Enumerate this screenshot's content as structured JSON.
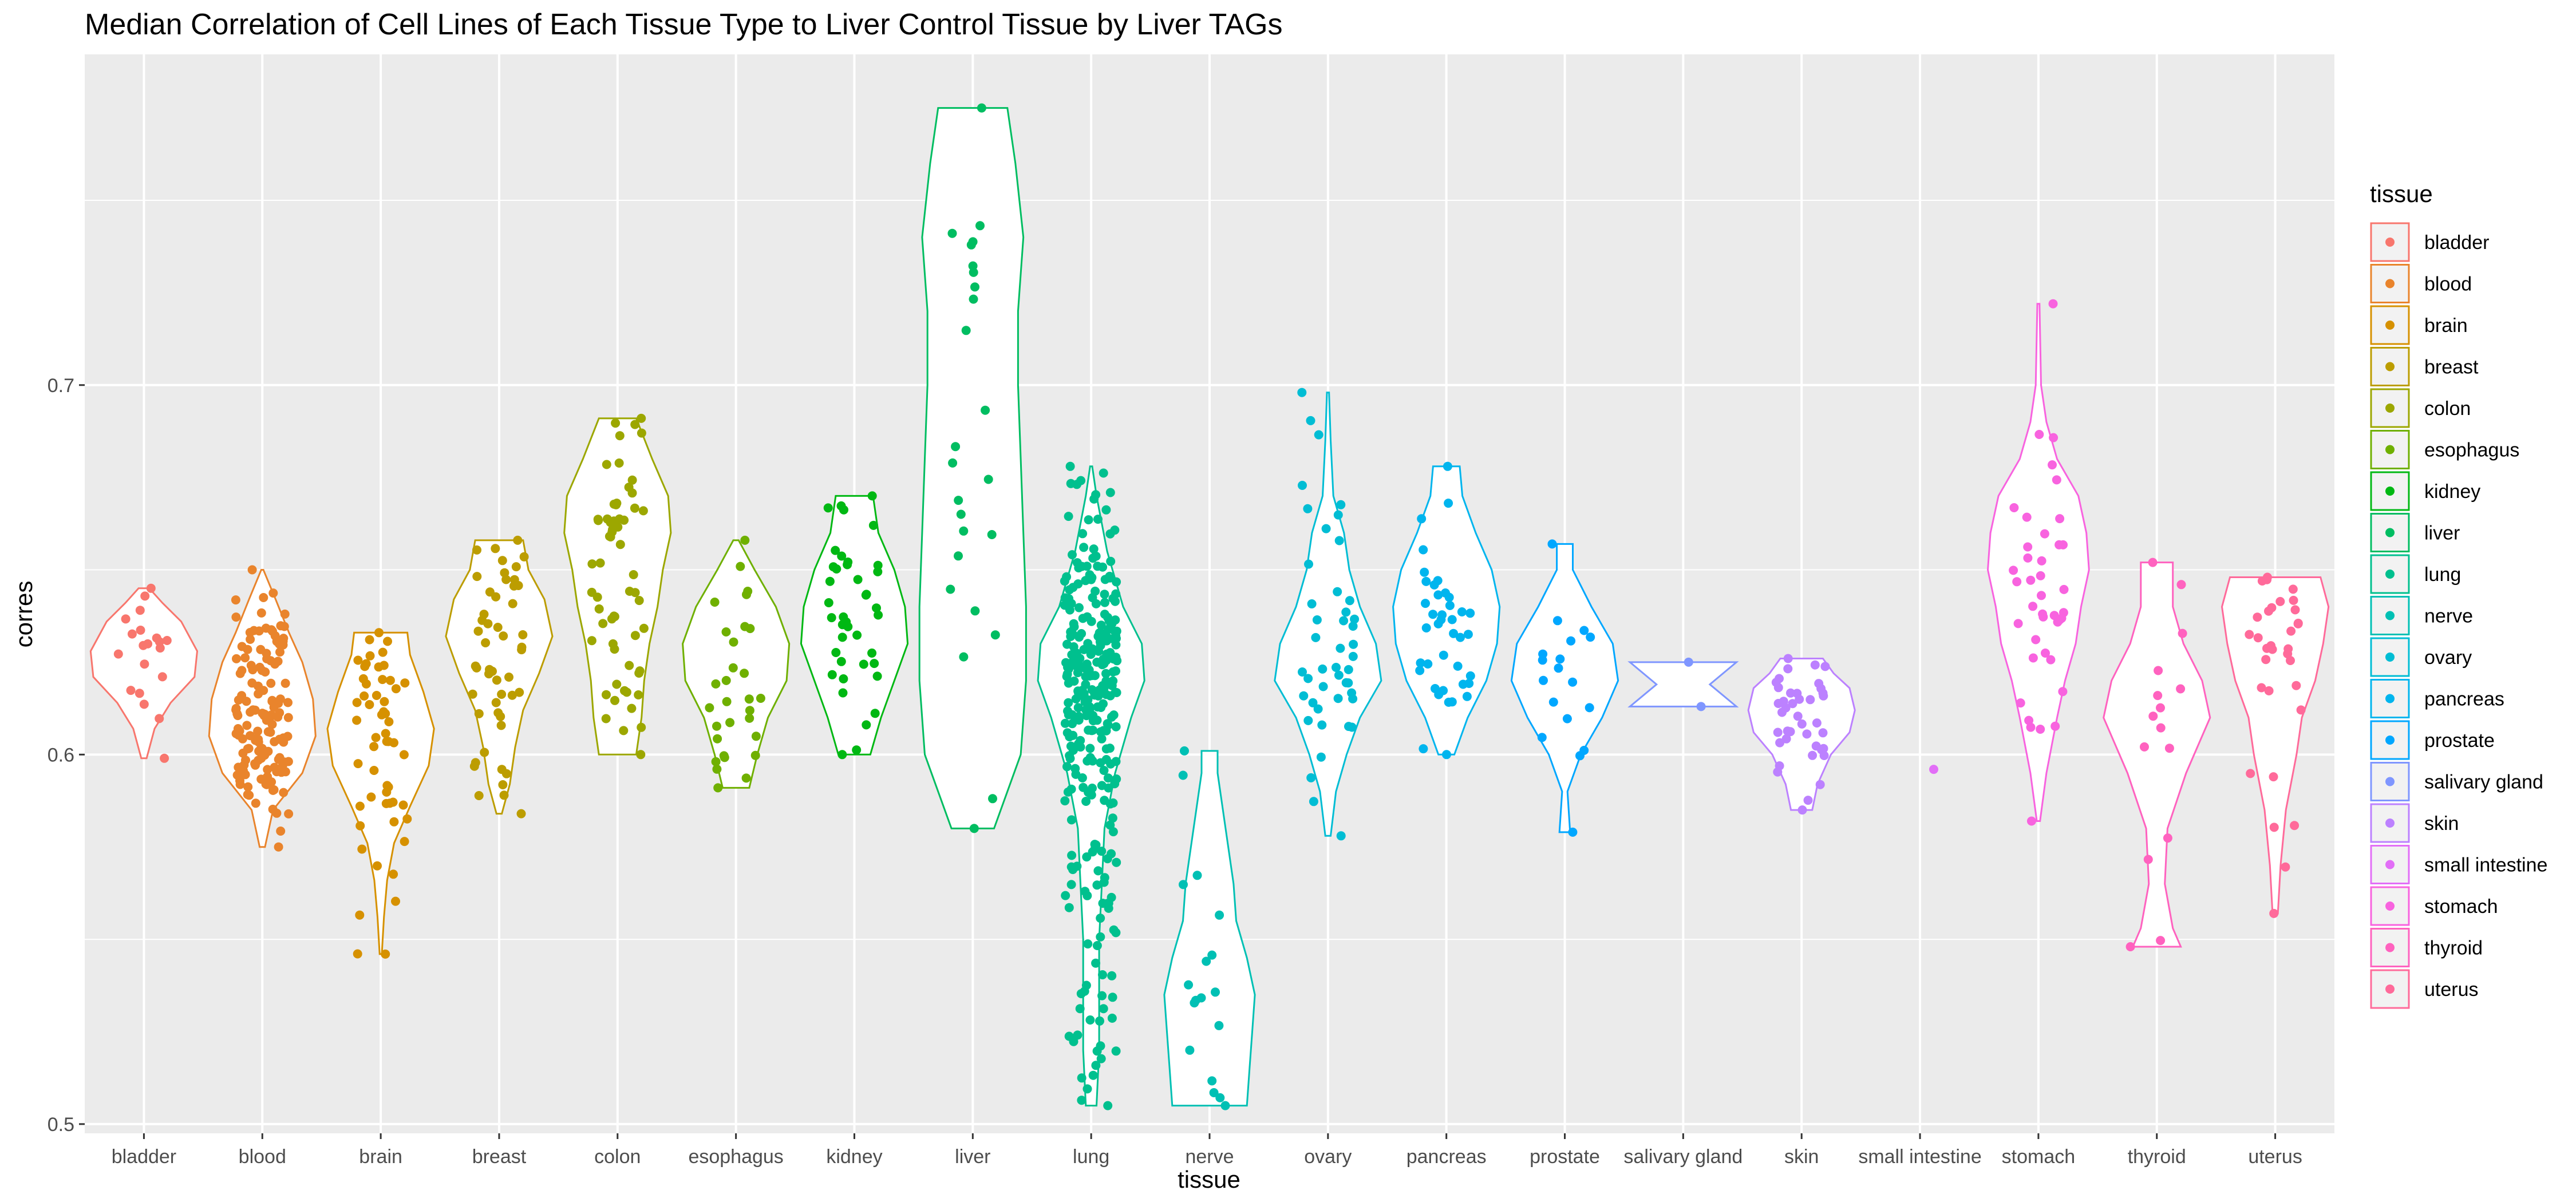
{
  "chart_data": {
    "type": "violin",
    "title": "Median Correlation of Cell Lines of Each Tissue Type to Liver Control Tissue by Liver TAGs",
    "xlabel": "tissue",
    "ylabel": "corres",
    "ylim": [
      0.4975,
      0.7895
    ],
    "yticks": [
      0.5,
      0.6,
      0.7
    ],
    "ytick_labels": [
      "0.5",
      "0.6",
      "0.7"
    ],
    "grid": true,
    "legend": {
      "title": "tissue",
      "position": "right"
    },
    "categories": [
      "bladder",
      "blood",
      "brain",
      "breast",
      "colon",
      "esophagus",
      "kidney",
      "liver",
      "lung",
      "nerve",
      "ovary",
      "pancreas",
      "prostate",
      "salivary gland",
      "skin",
      "small intestine",
      "stomach",
      "thyroid",
      "uterus"
    ],
    "colors": [
      "#F8766D",
      "#E9842C",
      "#D69100",
      "#BC9D00",
      "#9CA700",
      "#6FB000",
      "#00B813",
      "#00BD61",
      "#00C08E",
      "#00C0B4",
      "#00BDD4",
      "#00B5EE",
      "#00A7FF",
      "#7F96FF",
      "#BC81FF",
      "#E26EF7",
      "#F863DF",
      "#FF62BF",
      "#FF6A9A"
    ],
    "series": [
      {
        "name": "bladder",
        "count": 20,
        "min": 0.599,
        "max": 0.645,
        "profile": [
          [
            0.599,
            0.05
          ],
          [
            0.607,
            0.2
          ],
          [
            0.614,
            0.5
          ],
          [
            0.621,
            0.95
          ],
          [
            0.628,
            1.0
          ],
          [
            0.636,
            0.7
          ],
          [
            0.641,
            0.35
          ],
          [
            0.645,
            0.1
          ]
        ]
      },
      {
        "name": "blood",
        "count": 140,
        "min": 0.575,
        "max": 0.65,
        "profile": [
          [
            0.575,
            0.05
          ],
          [
            0.585,
            0.2
          ],
          [
            0.595,
            0.75
          ],
          [
            0.605,
            1.0
          ],
          [
            0.615,
            0.95
          ],
          [
            0.625,
            0.75
          ],
          [
            0.633,
            0.5
          ],
          [
            0.642,
            0.25
          ],
          [
            0.65,
            0.02
          ]
        ]
      },
      {
        "name": "brain",
        "count": 55,
        "min": 0.546,
        "max": 0.633,
        "profile": [
          [
            0.546,
            0.02
          ],
          [
            0.556,
            0.06
          ],
          [
            0.566,
            0.12
          ],
          [
            0.576,
            0.25
          ],
          [
            0.586,
            0.55
          ],
          [
            0.597,
            0.9
          ],
          [
            0.607,
            1.0
          ],
          [
            0.617,
            0.8
          ],
          [
            0.627,
            0.55
          ],
          [
            0.633,
            0.5
          ]
        ]
      },
      {
        "name": "breast",
        "count": 50,
        "min": 0.584,
        "max": 0.658,
        "profile": [
          [
            0.584,
            0.05
          ],
          [
            0.592,
            0.2
          ],
          [
            0.602,
            0.3
          ],
          [
            0.612,
            0.45
          ],
          [
            0.622,
            0.75
          ],
          [
            0.632,
            1.0
          ],
          [
            0.642,
            0.85
          ],
          [
            0.65,
            0.55
          ],
          [
            0.658,
            0.45
          ]
        ]
      },
      {
        "name": "colon",
        "count": 60,
        "min": 0.6,
        "max": 0.691,
        "profile": [
          [
            0.6,
            0.35
          ],
          [
            0.61,
            0.45
          ],
          [
            0.62,
            0.5
          ],
          [
            0.63,
            0.6
          ],
          [
            0.64,
            0.75
          ],
          [
            0.65,
            0.85
          ],
          [
            0.66,
            1.0
          ],
          [
            0.67,
            0.95
          ],
          [
            0.68,
            0.65
          ],
          [
            0.691,
            0.35
          ]
        ]
      },
      {
        "name": "esophagus",
        "count": 30,
        "min": 0.591,
        "max": 0.658,
        "profile": [
          [
            0.591,
            0.25
          ],
          [
            0.6,
            0.4
          ],
          [
            0.61,
            0.6
          ],
          [
            0.62,
            0.95
          ],
          [
            0.63,
            1.0
          ],
          [
            0.64,
            0.75
          ],
          [
            0.65,
            0.35
          ],
          [
            0.658,
            0.05
          ]
        ]
      },
      {
        "name": "kidney",
        "count": 40,
        "min": 0.6,
        "max": 0.67,
        "profile": [
          [
            0.6,
            0.3
          ],
          [
            0.61,
            0.5
          ],
          [
            0.62,
            0.75
          ],
          [
            0.63,
            1.0
          ],
          [
            0.64,
            0.95
          ],
          [
            0.65,
            0.75
          ],
          [
            0.66,
            0.45
          ],
          [
            0.67,
            0.35
          ]
        ]
      },
      {
        "name": "liver",
        "count": 25,
        "min": 0.58,
        "max": 0.775,
        "profile": [
          [
            0.58,
            0.4
          ],
          [
            0.6,
            0.9
          ],
          [
            0.62,
            1.0
          ],
          [
            0.64,
            1.0
          ],
          [
            0.66,
            0.95
          ],
          [
            0.68,
            0.9
          ],
          [
            0.7,
            0.85
          ],
          [
            0.72,
            0.85
          ],
          [
            0.74,
            0.95
          ],
          [
            0.76,
            0.8
          ],
          [
            0.775,
            0.65
          ]
        ]
      },
      {
        "name": "lung",
        "count": 300,
        "min": 0.505,
        "max": 0.678,
        "profile": [
          [
            0.505,
            0.1
          ],
          [
            0.52,
            0.15
          ],
          [
            0.535,
            0.15
          ],
          [
            0.55,
            0.15
          ],
          [
            0.565,
            0.2
          ],
          [
            0.58,
            0.25
          ],
          [
            0.595,
            0.45
          ],
          [
            0.61,
            0.75
          ],
          [
            0.62,
            1.0
          ],
          [
            0.63,
            0.95
          ],
          [
            0.64,
            0.6
          ],
          [
            0.655,
            0.3
          ],
          [
            0.67,
            0.1
          ],
          [
            0.678,
            0.02
          ]
        ]
      },
      {
        "name": "nerve",
        "count": 18,
        "min": 0.505,
        "max": 0.601,
        "profile": [
          [
            0.505,
            0.7
          ],
          [
            0.515,
            0.75
          ],
          [
            0.525,
            0.8
          ],
          [
            0.535,
            0.85
          ],
          [
            0.545,
            0.7
          ],
          [
            0.555,
            0.5
          ],
          [
            0.565,
            0.45
          ],
          [
            0.575,
            0.35
          ],
          [
            0.585,
            0.25
          ],
          [
            0.595,
            0.15
          ],
          [
            0.601,
            0.15
          ]
        ]
      },
      {
        "name": "ovary",
        "count": 45,
        "min": 0.578,
        "max": 0.698,
        "profile": [
          [
            0.578,
            0.05
          ],
          [
            0.59,
            0.15
          ],
          [
            0.6,
            0.35
          ],
          [
            0.61,
            0.6
          ],
          [
            0.62,
            1.0
          ],
          [
            0.63,
            0.9
          ],
          [
            0.64,
            0.6
          ],
          [
            0.65,
            0.4
          ],
          [
            0.66,
            0.3
          ],
          [
            0.67,
            0.1
          ],
          [
            0.685,
            0.05
          ],
          [
            0.698,
            0.02
          ]
        ]
      },
      {
        "name": "pancreas",
        "count": 40,
        "min": 0.6,
        "max": 0.678,
        "profile": [
          [
            0.6,
            0.15
          ],
          [
            0.61,
            0.4
          ],
          [
            0.62,
            0.75
          ],
          [
            0.63,
            0.95
          ],
          [
            0.64,
            1.0
          ],
          [
            0.65,
            0.85
          ],
          [
            0.66,
            0.55
          ],
          [
            0.67,
            0.3
          ],
          [
            0.678,
            0.25
          ]
        ]
      },
      {
        "name": "prostate",
        "count": 18,
        "min": 0.579,
        "max": 0.657,
        "profile": [
          [
            0.579,
            0.1
          ],
          [
            0.59,
            0.05
          ],
          [
            0.6,
            0.3
          ],
          [
            0.61,
            0.7
          ],
          [
            0.62,
            1.0
          ],
          [
            0.63,
            0.9
          ],
          [
            0.64,
            0.5
          ],
          [
            0.65,
            0.15
          ],
          [
            0.657,
            0.15
          ]
        ]
      },
      {
        "name": "salivary gland",
        "count": 2,
        "min": 0.613,
        "max": 0.625,
        "profile": [
          [
            0.613,
            1.0
          ],
          [
            0.619,
            0.5
          ],
          [
            0.625,
            1.0
          ]
        ]
      },
      {
        "name": "skin",
        "count": 40,
        "min": 0.585,
        "max": 0.626,
        "profile": [
          [
            0.585,
            0.2
          ],
          [
            0.592,
            0.3
          ],
          [
            0.6,
            0.55
          ],
          [
            0.606,
            0.9
          ],
          [
            0.612,
            1.0
          ],
          [
            0.618,
            0.9
          ],
          [
            0.622,
            0.6
          ],
          [
            0.626,
            0.4
          ]
        ]
      },
      {
        "name": "small intestine",
        "count": 1,
        "min": 0.596,
        "max": 0.596,
        "profile": []
      },
      {
        "name": "stomach",
        "count": 40,
        "min": 0.582,
        "max": 0.722,
        "profile": [
          [
            0.582,
            0.03
          ],
          [
            0.595,
            0.15
          ],
          [
            0.61,
            0.35
          ],
          [
            0.62,
            0.5
          ],
          [
            0.63,
            0.7
          ],
          [
            0.64,
            0.8
          ],
          [
            0.65,
            0.95
          ],
          [
            0.66,
            0.9
          ],
          [
            0.67,
            0.75
          ],
          [
            0.68,
            0.35
          ],
          [
            0.69,
            0.15
          ],
          [
            0.7,
            0.05
          ],
          [
            0.722,
            0.02
          ]
        ]
      },
      {
        "name": "thyroid",
        "count": 15,
        "min": 0.548,
        "max": 0.652,
        "profile": [
          [
            0.548,
            0.45
          ],
          [
            0.553,
            0.3
          ],
          [
            0.565,
            0.15
          ],
          [
            0.58,
            0.2
          ],
          [
            0.595,
            0.55
          ],
          [
            0.61,
            1.0
          ],
          [
            0.62,
            0.85
          ],
          [
            0.63,
            0.5
          ],
          [
            0.64,
            0.3
          ],
          [
            0.652,
            0.3
          ]
        ]
      },
      {
        "name": "uterus",
        "count": 32,
        "min": 0.557,
        "max": 0.648,
        "profile": [
          [
            0.557,
            0.05
          ],
          [
            0.57,
            0.1
          ],
          [
            0.585,
            0.2
          ],
          [
            0.6,
            0.4
          ],
          [
            0.61,
            0.5
          ],
          [
            0.62,
            0.75
          ],
          [
            0.63,
            0.9
          ],
          [
            0.64,
            1.0
          ],
          [
            0.648,
            0.85
          ]
        ]
      }
    ]
  }
}
